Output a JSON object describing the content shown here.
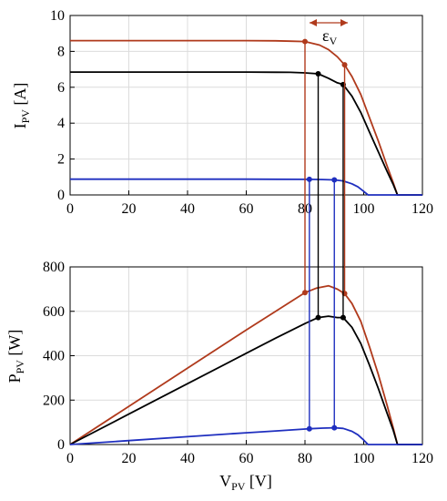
{
  "chart_data": [
    {
      "type": "line",
      "xlim": [
        0,
        120
      ],
      "ylim": [
        0,
        10
      ],
      "x_ticks": [
        "0",
        "20",
        "40",
        "60",
        "80",
        "100",
        "120"
      ],
      "y_ticks": [
        "0",
        "2",
        "4",
        "6",
        "8",
        "10"
      ],
      "grid": true,
      "ylabel_main": "I",
      "ylabel_sub": "PV",
      "ylabel_unit": "[A]",
      "annotation": "ε",
      "annotation_sub": "V",
      "series": [
        {
          "color": "#b03a1c",
          "x": [
            0,
            20,
            40,
            60,
            70,
            75,
            80,
            85,
            88,
            91,
            93.5,
            96,
            99,
            102,
            105,
            108,
            110,
            111.5,
            120
          ],
          "y": [
            8.6,
            8.6,
            8.6,
            8.6,
            8.59,
            8.57,
            8.55,
            8.35,
            8.1,
            7.7,
            7.25,
            6.6,
            5.6,
            4.3,
            3.0,
            1.6,
            0.7,
            0,
            0
          ]
        },
        {
          "color": "#000000",
          "x": [
            0,
            20,
            40,
            60,
            70,
            75,
            80,
            84.5,
            88,
            91,
            93,
            96,
            99,
            102,
            105,
            108,
            110,
            111.5,
            120
          ],
          "y": [
            6.85,
            6.85,
            6.85,
            6.85,
            6.84,
            6.83,
            6.8,
            6.75,
            6.5,
            6.25,
            6.15,
            5.5,
            4.6,
            3.5,
            2.4,
            1.3,
            0.6,
            0,
            0
          ]
        },
        {
          "color": "#1f2fbf",
          "x": [
            0,
            20,
            40,
            60,
            70,
            80,
            81.5,
            86,
            90,
            93,
            96,
            98,
            100,
            101.5,
            120
          ],
          "y": [
            0.88,
            0.88,
            0.88,
            0.88,
            0.875,
            0.87,
            0.87,
            0.86,
            0.84,
            0.78,
            0.62,
            0.45,
            0.2,
            0,
            0
          ]
        }
      ],
      "markers": [
        {
          "x": 80,
          "y": 8.55,
          "color": "#b03a1c"
        },
        {
          "x": 93.5,
          "y": 7.25,
          "color": "#b03a1c"
        },
        {
          "x": 84.5,
          "y": 6.75,
          "color": "#000000"
        },
        {
          "x": 93,
          "y": 6.15,
          "color": "#000000"
        },
        {
          "x": 81.5,
          "y": 0.87,
          "color": "#1f2fbf"
        },
        {
          "x": 90,
          "y": 0.84,
          "color": "#1f2fbf"
        }
      ]
    },
    {
      "type": "line",
      "xlim": [
        0,
        120
      ],
      "ylim": [
        0,
        800
      ],
      "x_ticks": [
        "0",
        "20",
        "40",
        "60",
        "80",
        "100",
        "120"
      ],
      "y_ticks": [
        "0",
        "200",
        "400",
        "600",
        "800"
      ],
      "grid": true,
      "xlabel_main": "V",
      "xlabel_sub": "PV",
      "xlabel_unit": "[V]",
      "ylabel_main": "P",
      "ylabel_sub": "PV",
      "ylabel_unit": "[W]",
      "series": [
        {
          "color": "#b03a1c",
          "x": [
            0,
            20,
            40,
            60,
            70,
            80,
            84,
            88,
            91,
            93.5,
            96,
            99,
            102,
            105,
            108,
            110,
            111.5,
            120
          ],
          "y": [
            0,
            172,
            344,
            516,
            600,
            684,
            705,
            715,
            700,
            680,
            635,
            555,
            440,
            315,
            175,
            77,
            0,
            0
          ]
        },
        {
          "color": "#000000",
          "x": [
            0,
            20,
            40,
            60,
            70,
            80,
            84.5,
            88,
            91,
            93,
            96,
            99,
            102,
            105,
            108,
            110,
            111.5,
            120
          ],
          "y": [
            0,
            137,
            274,
            411,
            479,
            545,
            572,
            578,
            572,
            572,
            528,
            455,
            357,
            252,
            140,
            66,
            0,
            0
          ]
        },
        {
          "color": "#1f2fbf",
          "x": [
            0,
            20,
            40,
            60,
            70,
            80,
            81.5,
            86,
            90,
            93,
            96,
            98,
            100,
            101.5,
            120
          ],
          "y": [
            0,
            17.6,
            35.2,
            52.8,
            61,
            69.6,
            70.9,
            74,
            75.6,
            72.5,
            59.5,
            44,
            20,
            0,
            0
          ]
        }
      ],
      "markers": [
        {
          "x": 80,
          "y": 684,
          "color": "#b03a1c"
        },
        {
          "x": 93.5,
          "y": 680,
          "color": "#b03a1c"
        },
        {
          "x": 84.5,
          "y": 572,
          "color": "#000000"
        },
        {
          "x": 93,
          "y": 572,
          "color": "#000000"
        },
        {
          "x": 81.5,
          "y": 70.9,
          "color": "#1f2fbf"
        },
        {
          "x": 90,
          "y": 75.6,
          "color": "#1f2fbf"
        }
      ]
    }
  ],
  "links": [
    {
      "x": 80,
      "color": "#b03a1c"
    },
    {
      "x": 93.5,
      "color": "#b03a1c"
    },
    {
      "x": 84.5,
      "color": "#000000"
    },
    {
      "x": 93,
      "color": "#000000"
    },
    {
      "x": 81.5,
      "color": "#1f2fbf"
    },
    {
      "x": 90,
      "color": "#1f2fbf"
    }
  ]
}
